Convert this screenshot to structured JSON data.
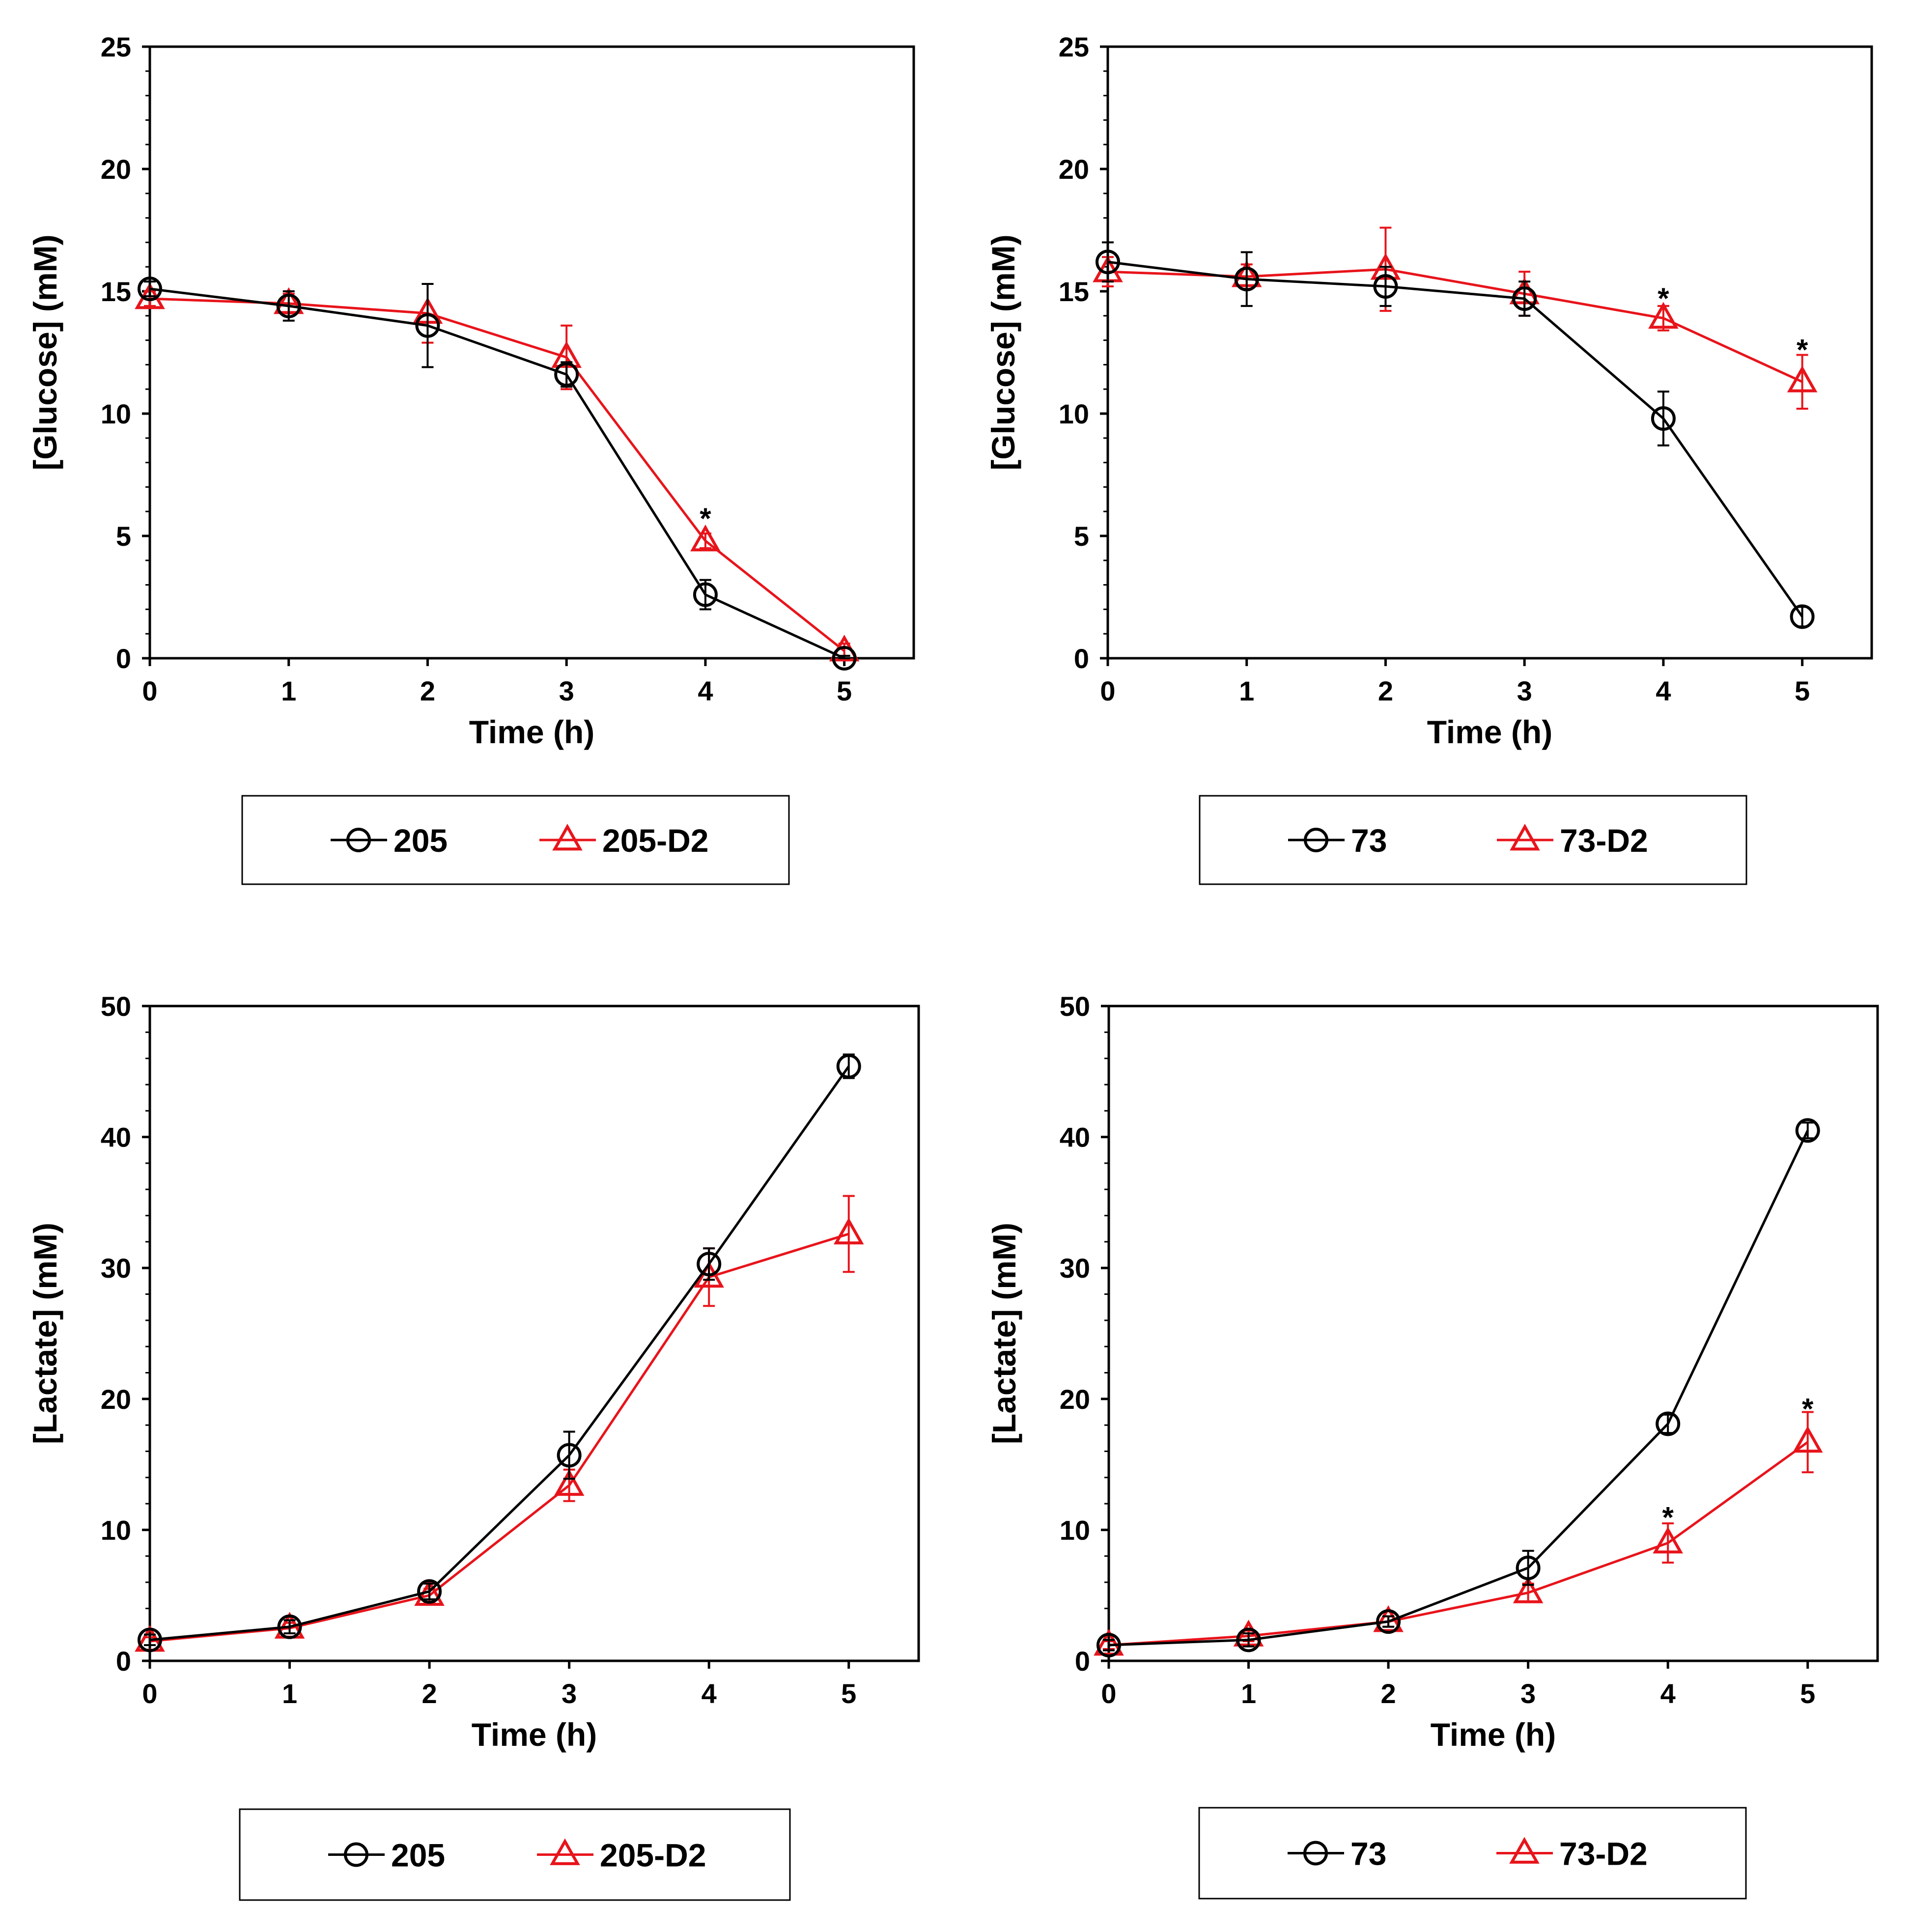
{
  "figure": {
    "colors": {
      "black_series": "#000000",
      "red_series": "#e8141b",
      "axes": "#000000",
      "background": "#ffffff"
    }
  },
  "chart_data": [
    {
      "type": "line",
      "panel": "top-left",
      "title": "",
      "xlabel": "Time (h)",
      "ylabel": "[Glucose] (mM)",
      "x": [
        0,
        1,
        2,
        3,
        4,
        5
      ],
      "xlim": [
        0,
        5.5
      ],
      "ylim": [
        0,
        25
      ],
      "xticks": [
        0,
        1,
        2,
        3,
        4,
        5
      ],
      "yticks": [
        0,
        5,
        10,
        15,
        20,
        25
      ],
      "grid": false,
      "legend_position": "bottom",
      "series": [
        {
          "name": "205",
          "color": "#000000",
          "marker": "circle",
          "values": [
            15.1,
            14.4,
            13.6,
            11.6,
            2.6,
            0.0
          ],
          "errors": [
            0.3,
            0.6,
            1.7,
            0.5,
            0.6,
            0.1
          ]
        },
        {
          "name": "205-D2",
          "color": "#e8141b",
          "marker": "triangle",
          "values": [
            14.7,
            14.5,
            14.1,
            12.3,
            4.8,
            0.3
          ],
          "errors": [
            0.3,
            0.4,
            1.2,
            1.3,
            0.3,
            0.3
          ]
        }
      ],
      "significance": [
        {
          "x": 4,
          "y": 5.9,
          "label": "*"
        }
      ]
    },
    {
      "type": "line",
      "panel": "top-right",
      "title": "",
      "xlabel": "Time (h)",
      "ylabel": "[Glucose] (mM)",
      "x": [
        0,
        1,
        2,
        3,
        4,
        5
      ],
      "xlim": [
        0,
        5.5
      ],
      "ylim": [
        0,
        25
      ],
      "xticks": [
        0,
        1,
        2,
        3,
        4,
        5
      ],
      "yticks": [
        0,
        5,
        10,
        15,
        20,
        25
      ],
      "grid": false,
      "legend_position": "bottom",
      "series": [
        {
          "name": "73",
          "color": "#000000",
          "marker": "circle",
          "values": [
            16.2,
            15.5,
            15.2,
            14.7,
            9.8,
            1.7
          ],
          "errors": [
            0.8,
            1.1,
            0.8,
            0.7,
            1.1,
            0.4
          ]
        },
        {
          "name": "73-D2",
          "color": "#e8141b",
          "marker": "triangle",
          "values": [
            15.8,
            15.6,
            15.9,
            14.9,
            13.9,
            11.3
          ],
          "errors": [
            0.6,
            0.5,
            1.7,
            0.9,
            0.5,
            1.1
          ]
        }
      ],
      "significance": [
        {
          "x": 4,
          "y": 14.9,
          "label": "*"
        },
        {
          "x": 5,
          "y": 12.8,
          "label": "*"
        }
      ]
    },
    {
      "type": "line",
      "panel": "bottom-left",
      "title": "",
      "xlabel": "Time (h)",
      "ylabel": "[Lactate] (mM)",
      "x": [
        0,
        1,
        2,
        3,
        4,
        5
      ],
      "xlim": [
        0,
        5.5
      ],
      "ylim": [
        0,
        50
      ],
      "xticks": [
        0,
        1,
        2,
        3,
        4,
        5
      ],
      "yticks": [
        0,
        10,
        20,
        30,
        40,
        50
      ],
      "grid": false,
      "legend_position": "bottom",
      "series": [
        {
          "name": "205",
          "color": "#000000",
          "marker": "circle",
          "values": [
            1.6,
            2.6,
            5.3,
            15.7,
            30.3,
            45.4
          ],
          "errors": [
            0.4,
            0.5,
            0.6,
            1.8,
            1.2,
            0.9
          ]
        },
        {
          "name": "205-D2",
          "color": "#e8141b",
          "marker": "triangle",
          "values": [
            1.5,
            2.5,
            5.0,
            13.4,
            29.3,
            32.6
          ],
          "errors": [
            0.3,
            0.4,
            0.5,
            1.2,
            2.2,
            2.9
          ]
        }
      ],
      "significance": []
    },
    {
      "type": "line",
      "panel": "bottom-right",
      "title": "",
      "xlabel": "Time (h)",
      "ylabel": "[Lactate] (mM)",
      "x": [
        0,
        1,
        2,
        3,
        4,
        5
      ],
      "xlim": [
        0,
        5.5
      ],
      "ylim": [
        0,
        50
      ],
      "xticks": [
        0,
        1,
        2,
        3,
        4,
        5
      ],
      "yticks": [
        0,
        10,
        20,
        30,
        40,
        50
      ],
      "grid": false,
      "legend_position": "bottom",
      "series": [
        {
          "name": "73",
          "color": "#000000",
          "marker": "circle",
          "values": [
            1.2,
            1.6,
            3.0,
            7.1,
            18.1,
            40.5
          ],
          "errors": [
            0.4,
            0.5,
            0.4,
            1.3,
            0.7,
            0.6
          ]
        },
        {
          "name": "73-D2",
          "color": "#e8141b",
          "marker": "triangle",
          "values": [
            1.2,
            1.9,
            3.0,
            5.2,
            9.0,
            16.7
          ],
          "errors": [
            0.3,
            0.4,
            0.4,
            0.7,
            1.5,
            2.3
          ]
        }
      ],
      "significance": [
        {
          "x": 4,
          "y": 11.3,
          "label": "*"
        },
        {
          "x": 5,
          "y": 19.6,
          "label": "*"
        }
      ]
    }
  ]
}
